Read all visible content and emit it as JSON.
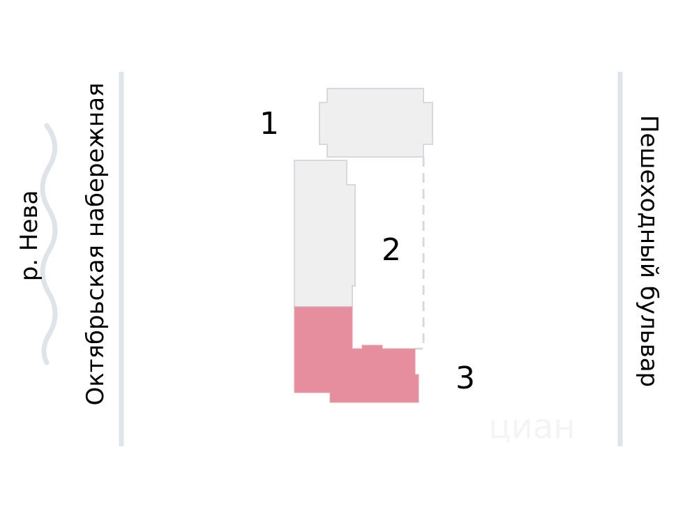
{
  "labels": {
    "river": "р. Нева",
    "embankment": "Октябрьская набережная",
    "boulevard": "Пешеходный бульвар"
  },
  "buildings": [
    {
      "number": "1",
      "highlighted": false
    },
    {
      "number": "2",
      "highlighted": false
    },
    {
      "number": "3",
      "highlighted": true
    }
  ],
  "watermark": "циан",
  "colors": {
    "building_fill": "#efeff0",
    "building_stroke": "#d6dade",
    "highlight_fill": "#e58f9e",
    "road": "#dfe4ea",
    "river": "#dfe4ea"
  }
}
